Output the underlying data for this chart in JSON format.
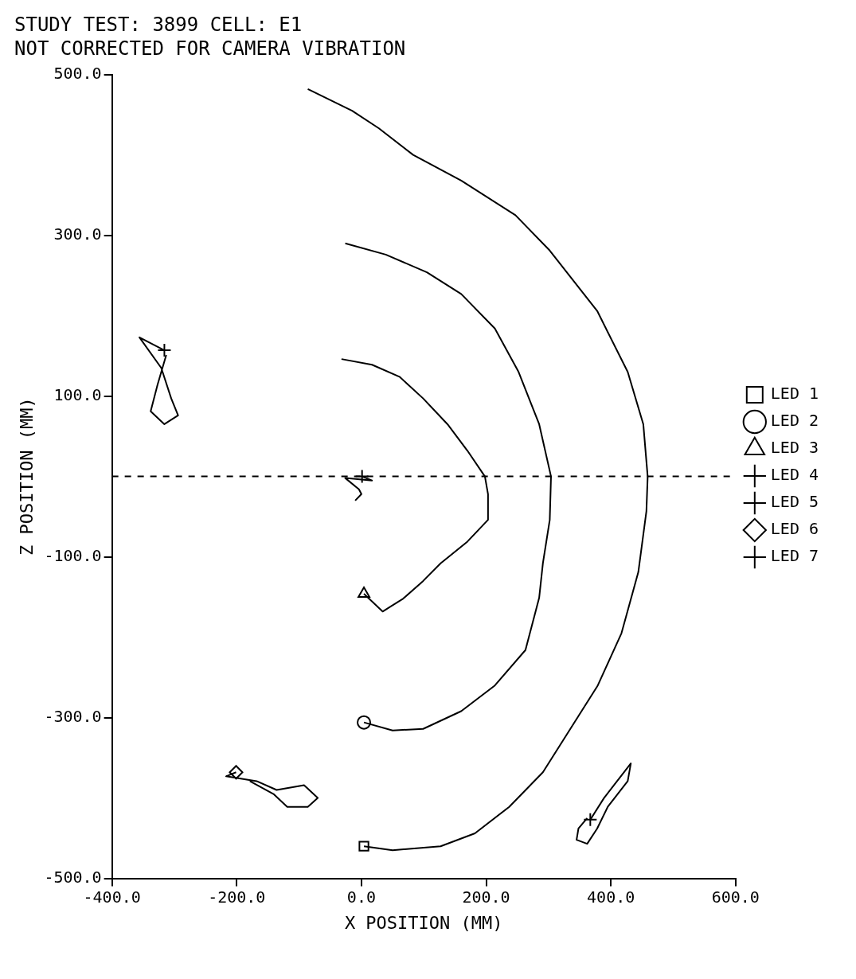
{
  "chart_data": {
    "type": "line",
    "title": "STUDY TEST: 3899 CELL: E1",
    "subtitle": "NOT CORRECTED FOR CAMERA VIBRATION",
    "xlabel": "X POSITION (MM)",
    "ylabel": "Z POSITION (MM)",
    "xlim": [
      -400,
      600
    ],
    "xticks": [
      {
        "value": -400,
        "label": "-400.0"
      },
      {
        "value": -200,
        "label": "-200.0"
      },
      {
        "value": 0,
        "label": "0.0"
      },
      {
        "value": 200,
        "label": "200.0"
      },
      {
        "value": 400,
        "label": "400.0"
      },
      {
        "value": 600,
        "label": "600.0"
      }
    ],
    "ylim": [
      -500,
      500
    ],
    "yticks": [
      {
        "value": -500,
        "label": "-500.0"
      },
      {
        "value": -300,
        "label": "-300.0"
      },
      {
        "value": -100,
        "label": "-100.0"
      },
      {
        "value": 100,
        "label": "100.0"
      },
      {
        "value": 300,
        "label": "300.0"
      },
      {
        "value": 500,
        "label": "500.0"
      }
    ],
    "legend": "right",
    "line_style": "solid",
    "ref_lines": [
      {
        "axis": "y",
        "value": 0,
        "color": "#000000",
        "line_style": "dashed"
      }
    ],
    "series": [
      {
        "color": "#000000",
        "marker": "none",
        "x": [
          4,
          50,
          127,
          182,
          237,
          291,
          335,
          379,
          417,
          444,
          457,
          459,
          452,
          427,
          378,
          302,
          247,
          160,
          83,
          28,
          -15,
          -86
        ],
        "values": [
          -460,
          -465,
          -460,
          -444,
          -411,
          -368,
          -314,
          -260,
          -195,
          -119,
          -43,
          0,
          65,
          130,
          206,
          281,
          325,
          368,
          400,
          433,
          455,
          482
        ]
      },
      {
        "color": "#000000",
        "marker": "none",
        "x": [
          4,
          50,
          99,
          160,
          214,
          263,
          285,
          291,
          302,
          304,
          285,
          252,
          214,
          160,
          105,
          39,
          -26
        ],
        "values": [
          -306,
          -316,
          -314,
          -292,
          -260,
          -216,
          -151,
          -108,
          -54,
          0,
          65,
          130,
          184,
          227,
          254,
          276,
          290
        ]
      },
      {
        "color": "#000000",
        "marker": "none",
        "x": [
          4,
          34,
          67,
          99,
          127,
          170,
          203,
          203,
          198,
          170,
          138,
          99,
          61,
          17,
          -32
        ],
        "values": [
          -146,
          -168,
          -152,
          -130,
          -108,
          -81,
          -54,
          -22,
          0,
          32,
          65,
          97,
          124,
          139,
          146
        ]
      },
      {
        "color": "#000000",
        "marker": "none",
        "x": [
          1,
          17,
          -26,
          -4,
          0,
          -10
        ],
        "values": [
          0,
          -5,
          -2,
          -16,
          -22,
          -30
        ]
      },
      {
        "color": "#000000",
        "marker": "none",
        "x": [
          -316,
          -356,
          -321,
          -305,
          -294,
          -316,
          -338,
          -327,
          -313
        ],
        "values": [
          157,
          173,
          135,
          97,
          76,
          65,
          81,
          114,
          151
        ]
      },
      {
        "color": "#000000",
        "marker": "none",
        "x": [
          -201,
          -217,
          -168,
          -136,
          -92,
          -70,
          -86,
          -119,
          -141,
          -179
        ],
        "values": [
          -368,
          -373,
          -379,
          -390,
          -384,
          -400,
          -411,
          -411,
          -395,
          -379
        ]
      },
      {
        "color": "#000000",
        "marker": "none",
        "x": [
          367,
          389,
          432,
          427,
          395,
          378,
          362,
          345,
          348,
          362
        ],
        "values": [
          -427,
          -400,
          -357,
          -379,
          -411,
          -438,
          -457,
          -452,
          -438,
          -425
        ]
      },
      {
        "type": "scatter",
        "name": "LED 1",
        "color": "#000000",
        "marker": "square",
        "x": [
          4
        ],
        "values": [
          -460
        ]
      },
      {
        "type": "scatter",
        "name": "LED 2",
        "color": "#000000",
        "marker": "circle",
        "x": [
          4
        ],
        "values": [
          -306
        ]
      },
      {
        "type": "scatter",
        "name": "LED 3",
        "color": "#000000",
        "marker": "triangle",
        "x": [
          4
        ],
        "values": [
          -146
        ]
      },
      {
        "type": "scatter",
        "name": "LED 4",
        "color": "#000000",
        "marker": "cross",
        "x": [
          1
        ],
        "values": [
          0
        ]
      },
      {
        "type": "scatter",
        "name": "LED 5",
        "color": "#000000",
        "marker": "cross",
        "x": [
          -316
        ],
        "values": [
          157
        ]
      },
      {
        "type": "scatter",
        "name": "LED 6",
        "color": "#000000",
        "marker": "diamond",
        "x": [
          -201
        ],
        "values": [
          -368
        ]
      },
      {
        "type": "scatter",
        "name": "LED 7",
        "color": "#000000",
        "marker": "cross",
        "x": [
          367
        ],
        "values": [
          -427
        ]
      }
    ]
  }
}
